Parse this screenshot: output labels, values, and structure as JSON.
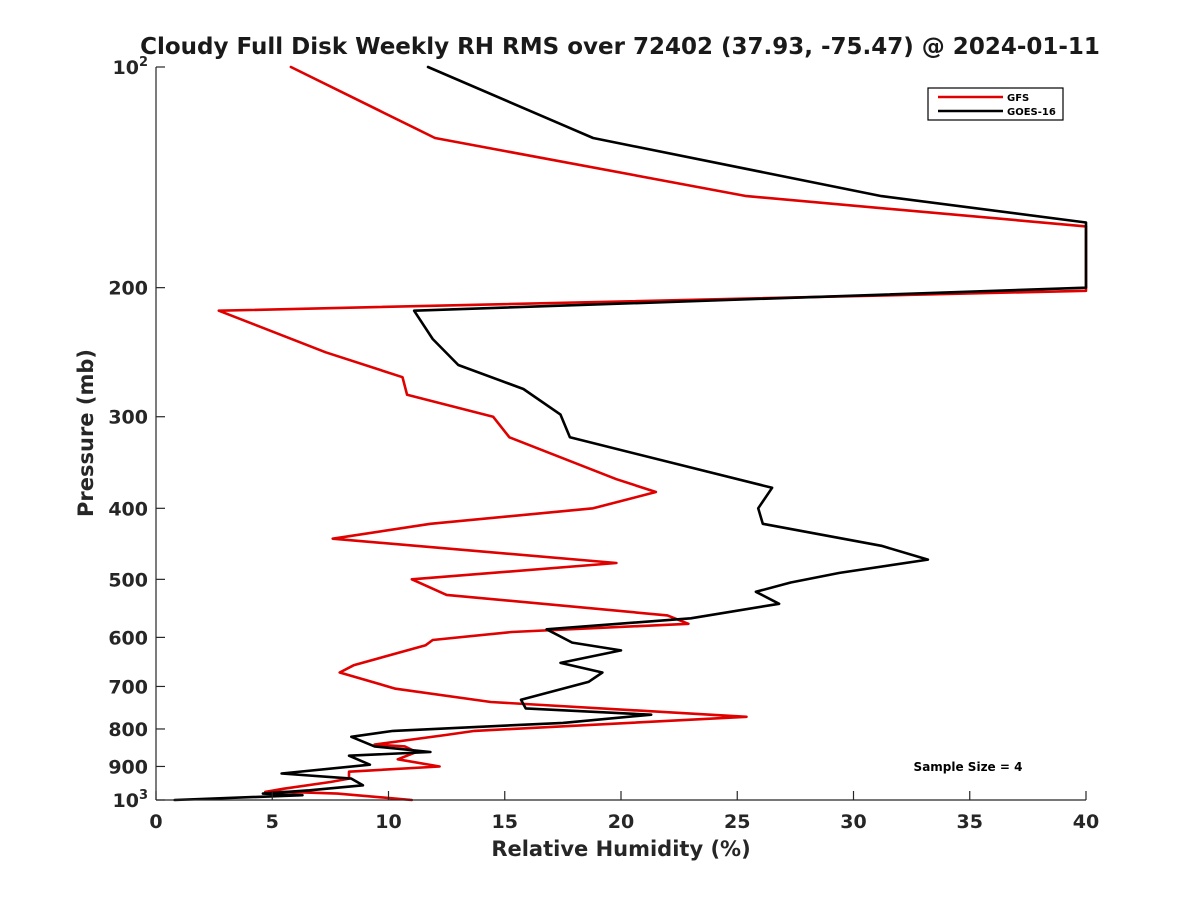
{
  "chart_data": {
    "type": "line",
    "title": "Cloudy Full Disk Weekly RH RMS over 72402 (37.93, -75.47) @ 2024-01-11",
    "xlabel": "Relative Humidity (%)",
    "ylabel": "Pressure (mb)",
    "xlim": [
      0,
      40
    ],
    "ylim": [
      100,
      1000
    ],
    "y_scale": "log",
    "y_reversed": true,
    "x_ticks": [
      0,
      5,
      10,
      15,
      20,
      25,
      30,
      35,
      40
    ],
    "x_tick_labels": [
      "0",
      "5",
      "10",
      "15",
      "20",
      "25",
      "30",
      "35",
      "40"
    ],
    "y_ticks": [
      {
        "value": 100,
        "base": "10",
        "exp": "2"
      },
      {
        "value": 200,
        "label": "200"
      },
      {
        "value": 300,
        "label": "300"
      },
      {
        "value": 400,
        "label": "400"
      },
      {
        "value": 500,
        "label": "500"
      },
      {
        "value": 600,
        "label": "600"
      },
      {
        "value": 700,
        "label": "700"
      },
      {
        "value": 800,
        "label": "800"
      },
      {
        "value": 900,
        "label": "900"
      },
      {
        "value": 1000,
        "base": "10",
        "exp": "3"
      }
    ],
    "legend": {
      "position": "top-right",
      "entries": [
        "GFS",
        "GOES-16"
      ]
    },
    "annotation": "Sample Size = 4",
    "grid": false,
    "series": [
      {
        "name": "GFS",
        "color": "#e00000",
        "points": [
          [
            5.8,
            100
          ],
          [
            12,
            125
          ],
          [
            25.4,
            150
          ],
          [
            40,
            165
          ],
          [
            40,
            202
          ],
          [
            2.7,
            215
          ],
          [
            7.3,
            245
          ],
          [
            10.6,
            265
          ],
          [
            10.8,
            280
          ],
          [
            14.5,
            300
          ],
          [
            15.2,
            320
          ],
          [
            19.8,
            365
          ],
          [
            21.5,
            380
          ],
          [
            18.8,
            400
          ],
          [
            11.8,
            420
          ],
          [
            7.6,
            440
          ],
          [
            19.8,
            475
          ],
          [
            11,
            500
          ],
          [
            12.5,
            525
          ],
          [
            22,
            560
          ],
          [
            22.9,
            575
          ],
          [
            15.3,
            590
          ],
          [
            11.9,
            605
          ],
          [
            11.6,
            615
          ],
          [
            8.5,
            655
          ],
          [
            7.9,
            670
          ],
          [
            10.3,
            705
          ],
          [
            14.4,
            735
          ],
          [
            25.4,
            770
          ],
          [
            13.7,
            805
          ],
          [
            12.5,
            815
          ],
          [
            9.4,
            840
          ],
          [
            10.7,
            845
          ],
          [
            11.2,
            860
          ],
          [
            10.4,
            880
          ],
          [
            12.2,
            900
          ],
          [
            8.3,
            915
          ],
          [
            8.3,
            935
          ],
          [
            7.5,
            945
          ],
          [
            5.5,
            965
          ],
          [
            4.7,
            975
          ],
          [
            5.7,
            975
          ],
          [
            7.8,
            980
          ],
          [
            11,
            1000
          ]
        ]
      },
      {
        "name": "GOES-16",
        "color": "#000000",
        "points": [
          [
            11.7,
            100
          ],
          [
            18.8,
            125
          ],
          [
            31.2,
            150
          ],
          [
            40,
            163
          ],
          [
            40,
            200
          ],
          [
            11.1,
            215
          ],
          [
            11.9,
            235
          ],
          [
            13,
            255
          ],
          [
            15.8,
            275
          ],
          [
            17.4,
            298
          ],
          [
            17.8,
            320
          ],
          [
            26.5,
            375
          ],
          [
            25.9,
            400
          ],
          [
            26.1,
            420
          ],
          [
            31.2,
            450
          ],
          [
            33.2,
            470
          ],
          [
            29.4,
            490
          ],
          [
            27.3,
            505
          ],
          [
            25.8,
            520
          ],
          [
            26.8,
            540
          ],
          [
            23,
            565
          ],
          [
            16.8,
            585
          ],
          [
            17.9,
            610
          ],
          [
            20,
            625
          ],
          [
            17.4,
            650
          ],
          [
            19.2,
            670
          ],
          [
            18.6,
            690
          ],
          [
            15.7,
            730
          ],
          [
            15.9,
            750
          ],
          [
            21.3,
            765
          ],
          [
            17.5,
            785
          ],
          [
            10.2,
            805
          ],
          [
            8.4,
            820
          ],
          [
            9.4,
            845
          ],
          [
            11.8,
            860
          ],
          [
            8.3,
            870
          ],
          [
            9.2,
            895
          ],
          [
            5.4,
            920
          ],
          [
            8.4,
            935
          ],
          [
            8.9,
            955
          ],
          [
            6.6,
            970
          ],
          [
            4.6,
            980
          ],
          [
            6.3,
            985
          ],
          [
            0.8,
            1000
          ]
        ]
      }
    ]
  }
}
